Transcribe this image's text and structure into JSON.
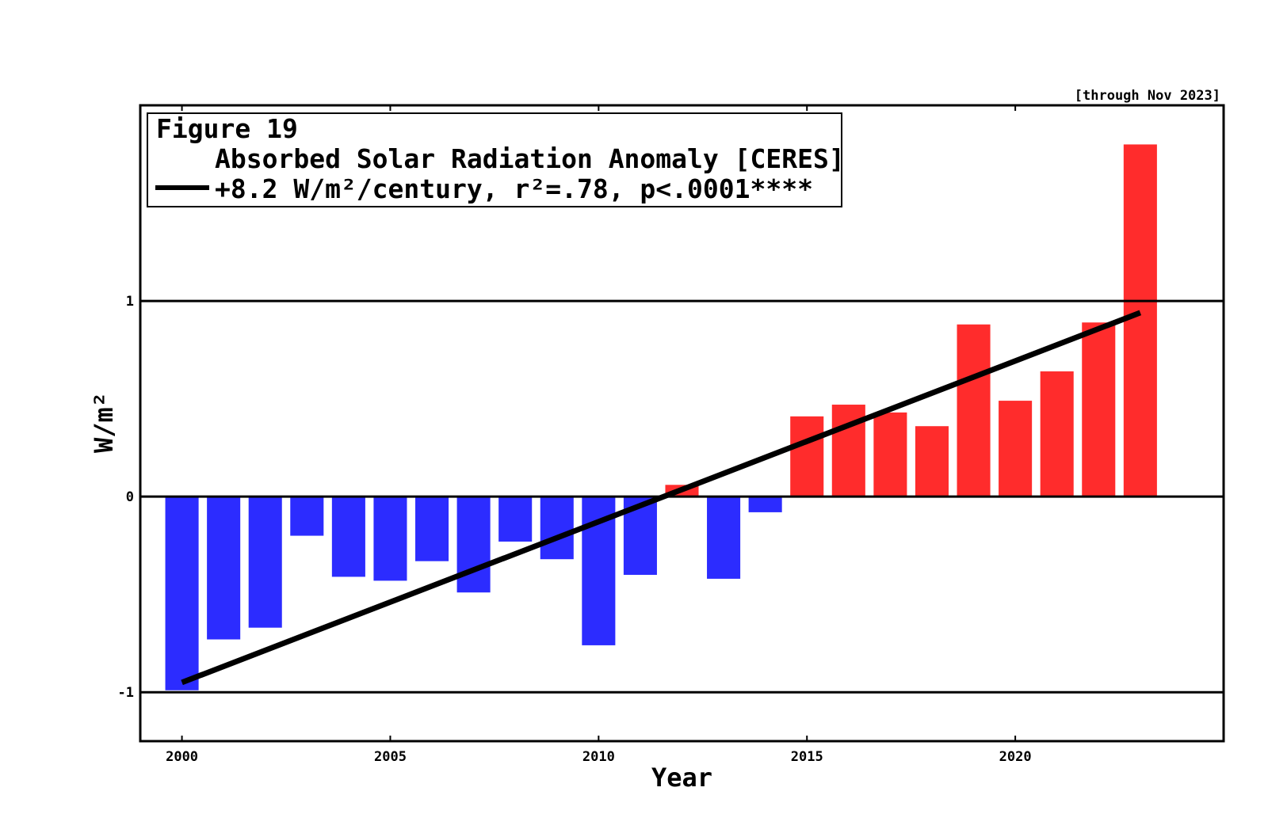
{
  "chart_data": {
    "type": "bar",
    "figure_label": "Figure 19",
    "title": "Absorbed Solar Radiation Anomaly [CERES]",
    "note": "[through Nov 2023]",
    "xlabel": "Year",
    "ylabel": "W/m²",
    "xlim": [
      1999,
      2025
    ],
    "ylim": [
      -1.25,
      2.0
    ],
    "x_ticks": [
      2000,
      2005,
      2010,
      2015,
      2020
    ],
    "x_tick_labels": [
      "2000",
      "2005",
      "2010",
      "2015",
      "2020"
    ],
    "y_ticks": [
      -1,
      0,
      1
    ],
    "y_tick_labels": [
      "-1",
      "0",
      "1"
    ],
    "reference_lines": [
      -1,
      0,
      1
    ],
    "grid": false,
    "legend_position": "top-left",
    "colors": {
      "positive": "#ff2c2c",
      "negative": "#2c2cff",
      "trend": "#000000"
    },
    "categories": [
      2000,
      2001,
      2002,
      2003,
      2004,
      2005,
      2006,
      2007,
      2008,
      2009,
      2010,
      2011,
      2012,
      2013,
      2014,
      2015,
      2016,
      2017,
      2018,
      2019,
      2020,
      2021,
      2022,
      2023
    ],
    "values": [
      -0.99,
      -0.73,
      -0.67,
      -0.2,
      -0.41,
      -0.43,
      -0.33,
      -0.49,
      -0.23,
      -0.32,
      -0.76,
      -0.4,
      0.06,
      -0.42,
      -0.08,
      0.41,
      0.47,
      0.43,
      0.36,
      0.88,
      0.49,
      0.64,
      0.89,
      1.8
    ],
    "trend": {
      "label": "+8.2 W/m²/century, r²=.78, p<.0001****",
      "x": [
        2000,
        2023
      ],
      "y": [
        -0.95,
        0.94
      ]
    }
  }
}
